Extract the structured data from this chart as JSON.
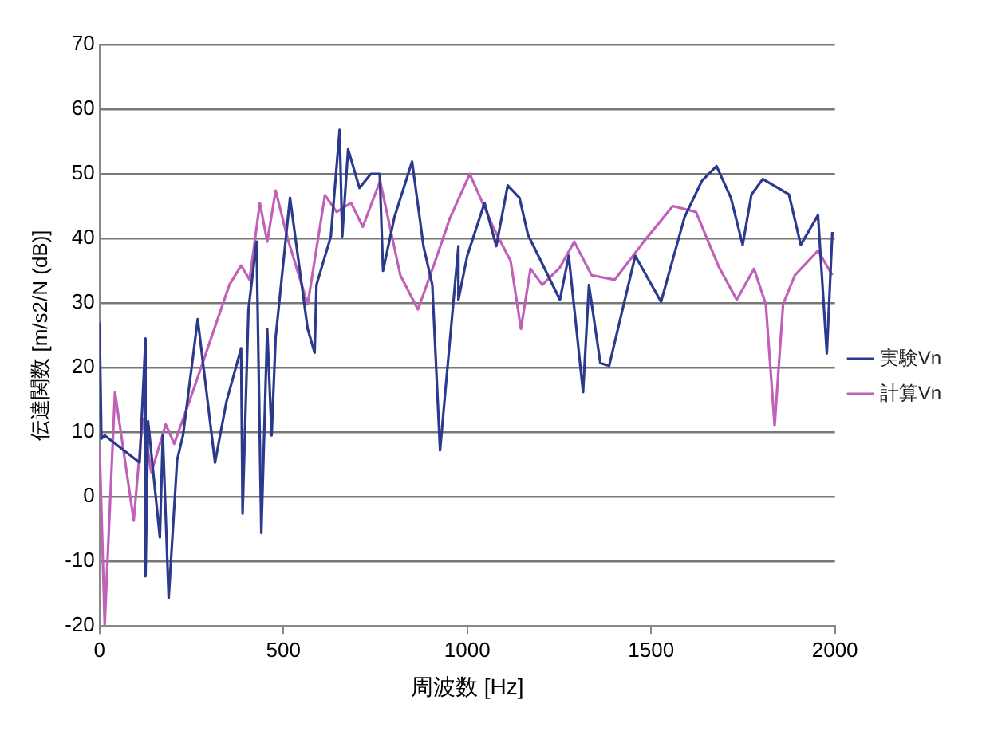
{
  "chart_data": {
    "type": "line",
    "xlabel": "周波数 [Hz]",
    "ylabel": "伝達関数 [m/s2/N (dB)]",
    "xlim": [
      0,
      2000
    ],
    "xticks": [
      0,
      500,
      1000,
      1500,
      2000
    ],
    "ylim": [
      -20,
      70
    ],
    "yticks": [
      -20,
      -10,
      0,
      10,
      20,
      30,
      40,
      50,
      60,
      70
    ],
    "grid": "y",
    "legend": "right",
    "marker": "none",
    "line_style": "solid",
    "series": [
      {
        "name": "実験Vn",
        "color": "#2b3a8c",
        "x": [
          0,
          5,
          14,
          109,
          125,
          125,
          132,
          164,
          172,
          188,
          211,
          227,
          267,
          314,
          345,
          385,
          389,
          405,
          427,
          440,
          456,
          468,
          479,
          518,
          566,
          585,
          590,
          629,
          653,
          660,
          676,
          707,
          738,
          762,
          771,
          802,
          850,
          881,
          905,
          926,
          976,
          976,
          1000,
          1047,
          1079,
          1110,
          1142,
          1165,
          1252,
          1276,
          1315,
          1331,
          1362,
          1386,
          1457,
          1527,
          1591,
          1638,
          1678,
          1717,
          1749,
          1773,
          1804,
          1875,
          1907,
          1954,
          1978,
          1993
        ],
        "values": [
          27,
          9,
          9.5,
          5.3,
          24.5,
          -12.3,
          11.7,
          -6.3,
          9.5,
          -15.7,
          5.7,
          9.5,
          27.5,
          5.3,
          14.7,
          23,
          -2.6,
          29,
          39.5,
          -5.6,
          26,
          9.5,
          24.7,
          46.3,
          26,
          22.3,
          32.8,
          40.3,
          56.8,
          40.3,
          53.8,
          47.8,
          50,
          50,
          35,
          43.3,
          51.9,
          38.8,
          32.8,
          7.2,
          38.8,
          30.5,
          37.3,
          45.5,
          38.8,
          48.2,
          46.3,
          40.6,
          30.5,
          37.3,
          16.2,
          32.8,
          20.7,
          20.3,
          37.3,
          30.2,
          43.3,
          48.9,
          51.2,
          46.3,
          39,
          46.8,
          49.2,
          46.8,
          39,
          43.6,
          22.2,
          41
        ]
      },
      {
        "name": "計算Vn",
        "color": "#c060b8",
        "x": [
          0,
          14,
          42,
          93,
          117,
          141,
          180,
          203,
          258,
          353,
          385,
          408,
          436,
          456,
          479,
          511,
          566,
          613,
          645,
          684,
          716,
          763,
          818,
          866,
          913,
          952,
          1007,
          1070,
          1118,
          1146,
          1172,
          1204,
          1252,
          1291,
          1338,
          1401,
          1480,
          1559,
          1622,
          1685,
          1733,
          1780,
          1812,
          1836,
          1859,
          1891,
          1954,
          1993
        ],
        "values": [
          8,
          -19.8,
          16.2,
          -3.7,
          12.1,
          3.8,
          11.2,
          8.2,
          17,
          32.8,
          35.8,
          33.6,
          45.5,
          39.5,
          47.4,
          40.1,
          29.8,
          46.7,
          44.1,
          45.5,
          41.8,
          48.9,
          34.3,
          29,
          36.5,
          43,
          50,
          41.8,
          36.5,
          26,
          35.3,
          32.8,
          35.5,
          39.5,
          34.3,
          33.6,
          39.5,
          45,
          44.1,
          35.5,
          30.5,
          35.3,
          29.8,
          11,
          29.8,
          34.3,
          38.1,
          34.3
        ]
      }
    ]
  }
}
